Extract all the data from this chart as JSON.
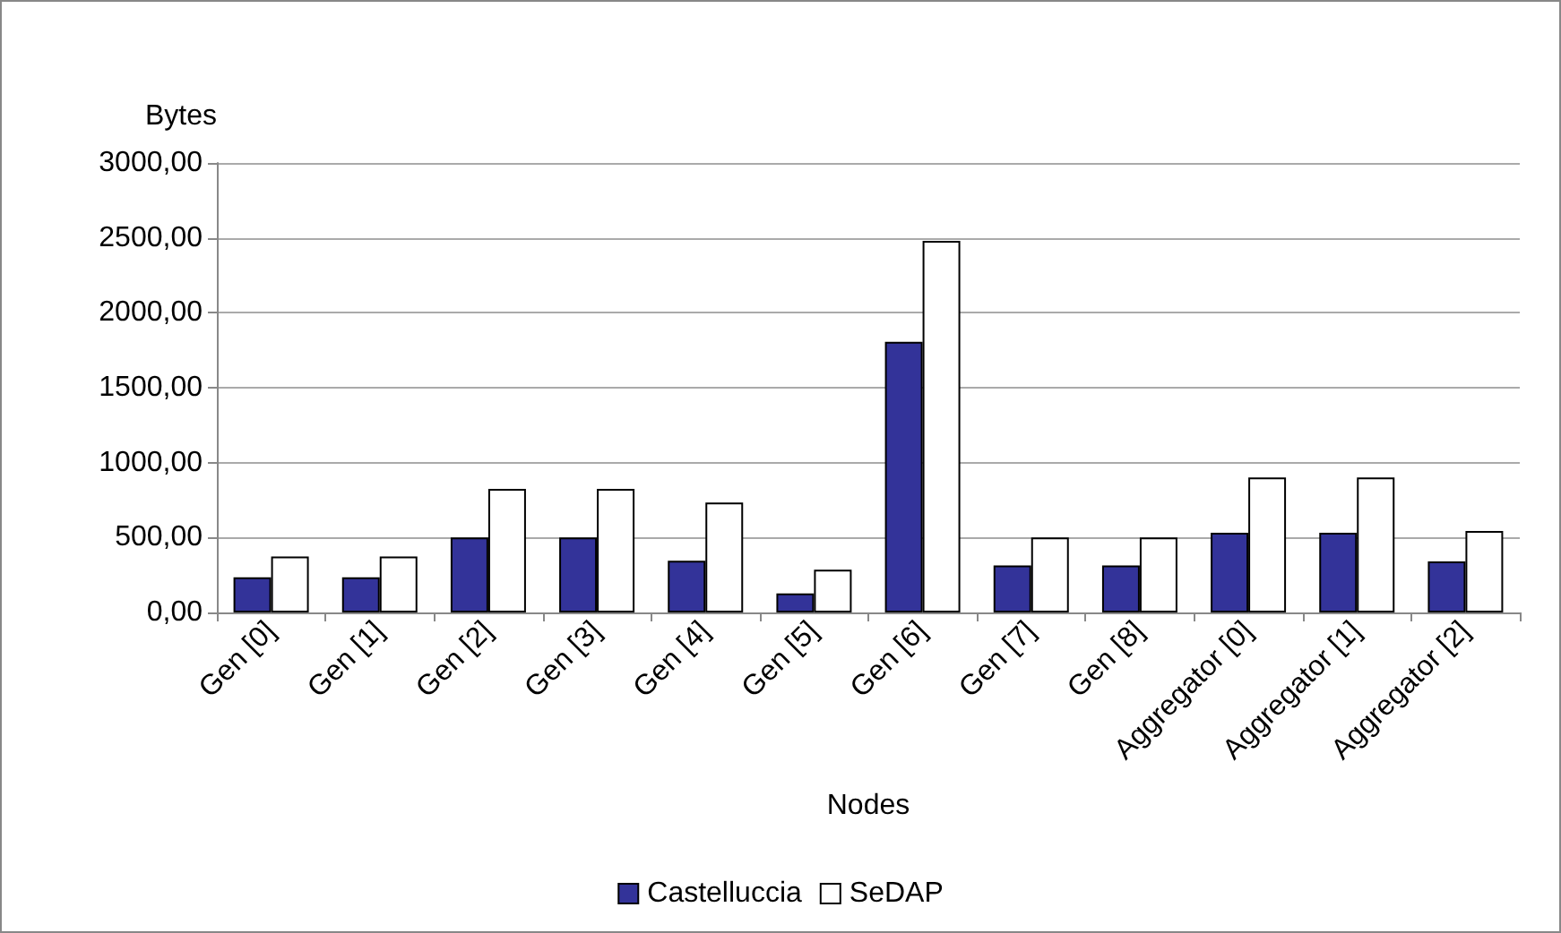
{
  "chart_data": {
    "type": "bar",
    "xlabel": "Nodes",
    "ylabel": "Bytes",
    "categories": [
      "Gen [0]",
      "Gen [1]",
      "Gen [2]",
      "Gen [3]",
      "Gen [4]",
      "Gen [5]",
      "Gen [6]",
      "Gen [7]",
      "Gen [8]",
      "Aggregator [0]",
      "Aggregator [1]",
      "Aggregator [2]"
    ],
    "series": [
      {
        "name": "Castelluccia",
        "color": "#333399",
        "values": [
          234,
          234,
          500,
          500,
          345,
          127,
          1806,
          313,
          313,
          532,
          532,
          341
        ]
      },
      {
        "name": "SeDAP",
        "color": "#ffffff",
        "values": [
          373,
          373,
          825,
          825,
          734,
          286,
          2480,
          500,
          500,
          901,
          901,
          544
        ]
      }
    ],
    "ylim": [
      0,
      3000
    ],
    "yticks": [
      {
        "value": 0,
        "label": "0,00"
      },
      {
        "value": 500,
        "label": "500,00"
      },
      {
        "value": 1000,
        "label": "1000,00"
      },
      {
        "value": 1500,
        "label": "1500,00"
      },
      {
        "value": 2000,
        "label": "2000,00"
      },
      {
        "value": 2500,
        "label": "2500,00"
      },
      {
        "value": 3000,
        "label": "3000,00"
      }
    ],
    "grid": "y",
    "legend": "bottom"
  }
}
